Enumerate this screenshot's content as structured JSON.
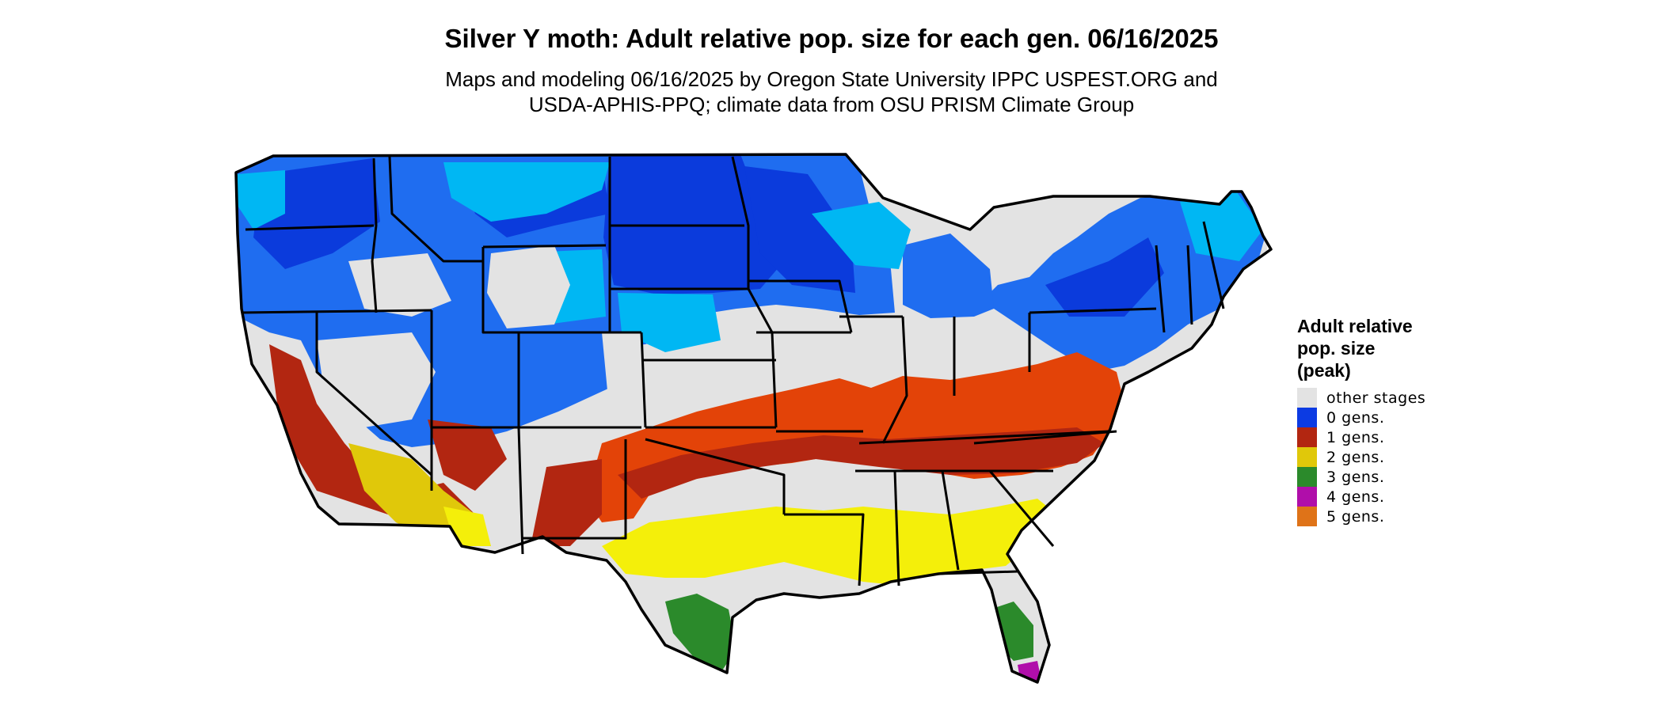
{
  "header": {
    "title": "Silver Y moth: Adult relative pop. size for each gen. 06/16/2025",
    "subtitle_line1": "Maps and modeling 06/16/2025 by Oregon State University IPPC USPEST.ORG and",
    "subtitle_line2": "USDA-APHIS-PPQ; climate data from OSU PRISM Climate Group"
  },
  "legend": {
    "title_line1": "Adult relative",
    "title_line2": "pop. size",
    "title_line3": "(peak)",
    "items": [
      {
        "label": "other stages",
        "color": "#e3e3e3"
      },
      {
        "label": "0 gens.",
        "color": "#0c3be3"
      },
      {
        "label": "1 gens.",
        "color": "#b22611"
      },
      {
        "label": "2 gens.",
        "color": "#e0c80a"
      },
      {
        "label": "3 gens.",
        "color": "#2b8a2b"
      },
      {
        "label": "4 gens.",
        "color": "#b00eaa"
      },
      {
        "label": "5 gens.",
        "color": "#df7318"
      }
    ]
  },
  "colors": {
    "land_gray": "#e3e3e3",
    "blue_dark": "#0b3bdc",
    "blue_mid": "#1f6df0",
    "blue_light": "#00b7f3",
    "red": "#b22611",
    "orange_red": "#e34308",
    "yellow": "#f4ef0a",
    "green": "#2b8a2b",
    "magenta": "#b00eaa",
    "border": "#000000"
  }
}
